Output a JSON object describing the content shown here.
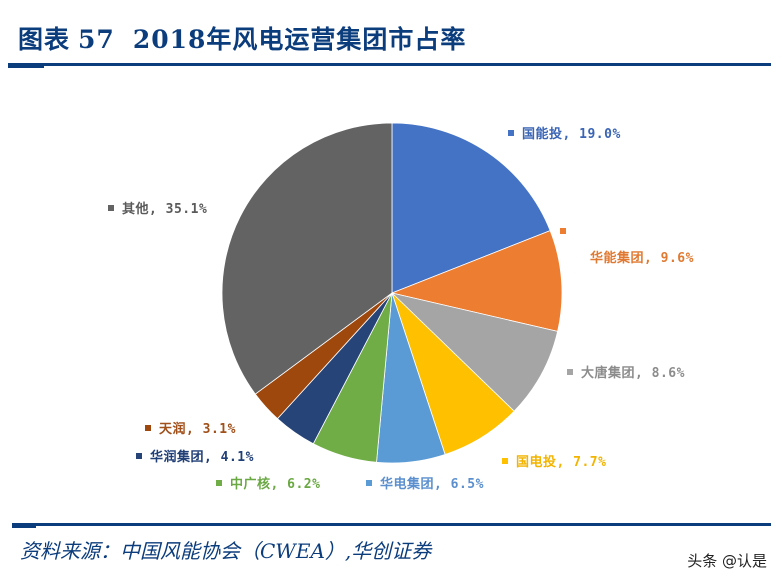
{
  "header": {
    "figure_label": "图表",
    "figure_number": "57",
    "title": "2018年风电运营集团市占率"
  },
  "footer": {
    "source": "资料来源：中国风能协会（CWEA）,华创证券",
    "watermark": "头条 @认是"
  },
  "colors": {
    "rule": "#0b3c7c"
  },
  "chart_data": {
    "type": "pie",
    "title": "2018年风电运营集团市占率",
    "start_angle": "12 o'clock, clockwise",
    "categories": [
      "国能投",
      "华能集团",
      "大唐集团",
      "国电投",
      "华电集团",
      "中广核",
      "华润集团",
      "天润",
      "其他"
    ],
    "values": [
      19.0,
      9.6,
      8.6,
      7.7,
      6.5,
      6.2,
      4.1,
      3.1,
      35.1
    ],
    "unit": "%",
    "colors": [
      "#4472c4",
      "#ed7d31",
      "#a5a5a5",
      "#ffc000",
      "#5b9bd5",
      "#70ad47",
      "#264478",
      "#9e480e",
      "#636363"
    ],
    "labels": [
      {
        "text": "国能投, 19.0%",
        "color": "#3a64b4"
      },
      {
        "text": "华能集团, 9.6%",
        "color": "#e07a32"
      },
      {
        "text": "大唐集团, 8.6%",
        "color": "#8c8c8c"
      },
      {
        "text": "国电投, 7.7%",
        "color": "#f2b400"
      },
      {
        "text": "华电集团, 6.5%",
        "color": "#5b8fce"
      },
      {
        "text": "中广核, 6.2%",
        "color": "#6aa843"
      },
      {
        "text": "华润集团, 4.1%",
        "color": "#203f77"
      },
      {
        "text": "天润, 3.1%",
        "color": "#a0501a"
      },
      {
        "text": "其他, 35.1%",
        "color": "#5a5a5a"
      }
    ],
    "legend_position": "data labels outside slices"
  }
}
